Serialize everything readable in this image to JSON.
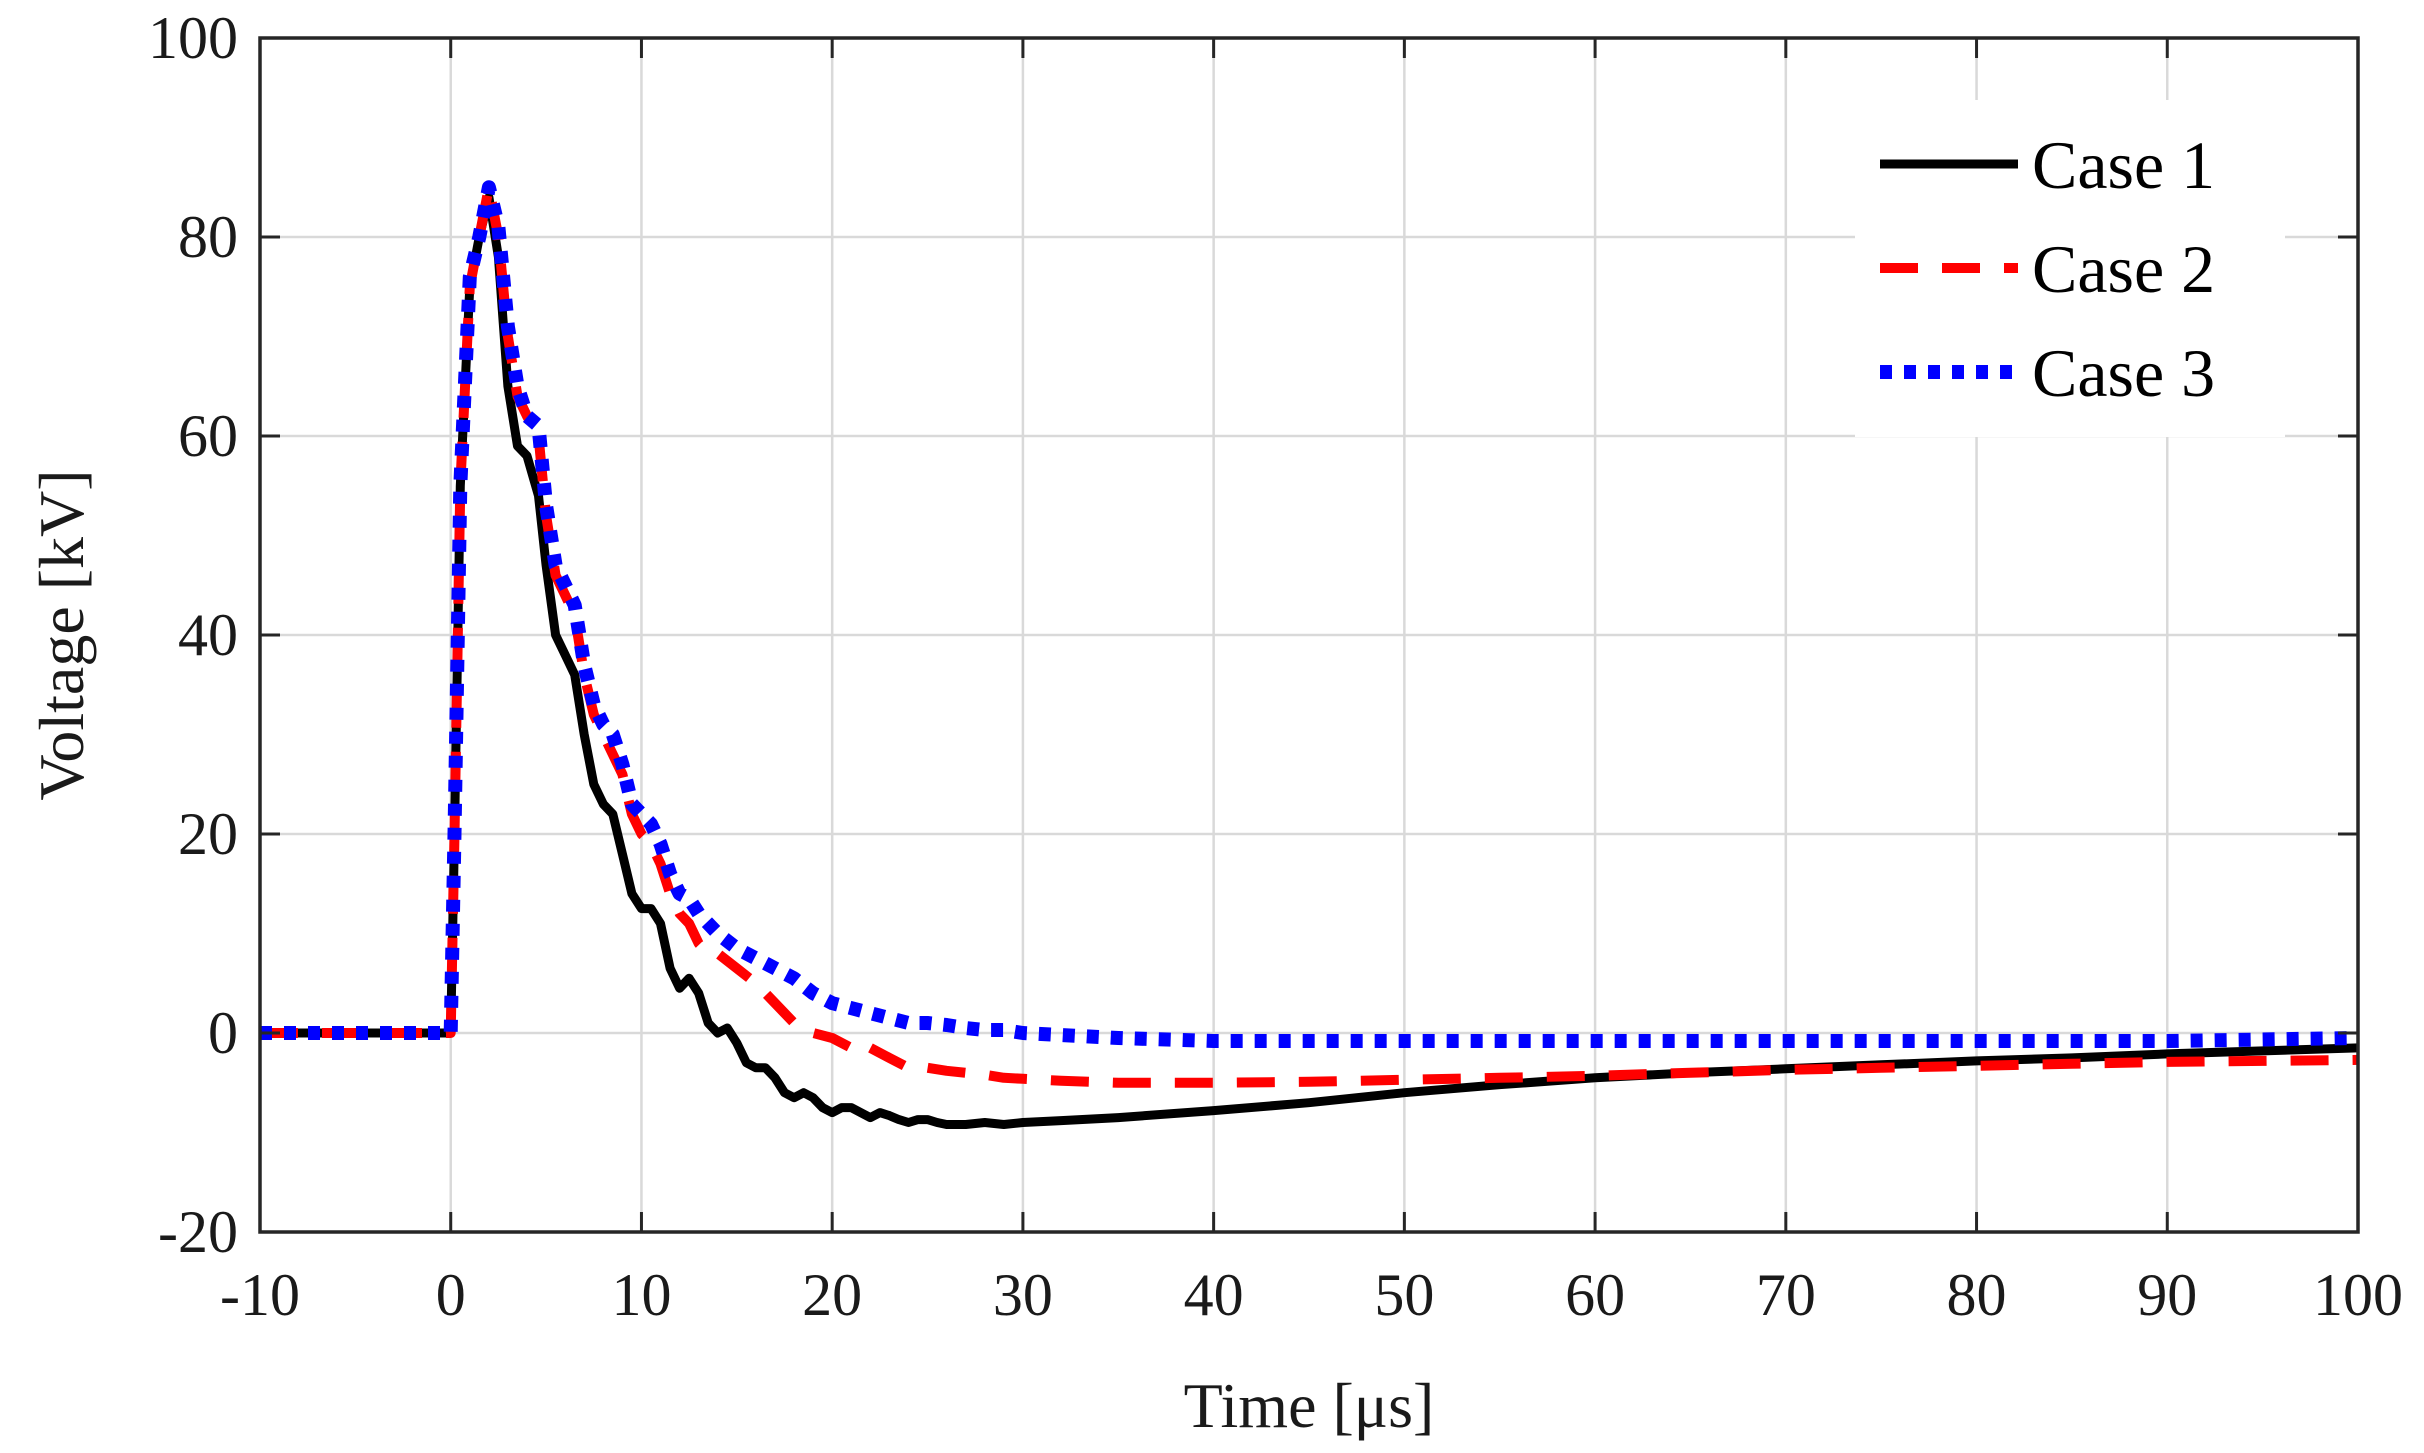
{
  "chart_data": {
    "type": "line",
    "title": "",
    "xlabel": "Time [μs]",
    "ylabel": "Voltage [kV]",
    "xlim": [
      -10,
      100
    ],
    "ylim": [
      -20,
      100
    ],
    "xticks": [
      -10,
      0,
      10,
      20,
      30,
      40,
      50,
      60,
      70,
      80,
      90,
      100
    ],
    "yticks": [
      -20,
      0,
      20,
      40,
      60,
      80,
      100
    ],
    "xtick_labels": [
      "-10",
      "0",
      "10",
      "20",
      "30",
      "40",
      "50",
      "60",
      "70",
      "80",
      "90",
      "100"
    ],
    "ytick_labels": [
      "-20",
      "0",
      "20",
      "40",
      "60",
      "80",
      "100"
    ],
    "grid": true,
    "legend_position": "top-right",
    "series": [
      {
        "name": "Case 1",
        "color": "#000000",
        "style": "solid",
        "x": [
          -10,
          0,
          0.2,
          0.5,
          1.0,
          1.5,
          2.0,
          2.5,
          3.0,
          3.5,
          4.0,
          4.6,
          5.0,
          5.5,
          6.0,
          6.5,
          7.0,
          7.5,
          8.0,
          8.5,
          9.0,
          9.5,
          10.0,
          10.5,
          11.0,
          11.5,
          12.0,
          12.5,
          13.0,
          13.5,
          14.0,
          14.5,
          15.0,
          15.5,
          16.0,
          16.5,
          17.0,
          17.5,
          18.0,
          18.5,
          19.0,
          19.5,
          20.0,
          20.5,
          21.0,
          21.5,
          22.0,
          22.5,
          23.0,
          23.5,
          24.0,
          24.5,
          25.0,
          25.5,
          26.0,
          27.0,
          28.0,
          29.0,
          30.0,
          32.0,
          35.0,
          40.0,
          45.0,
          50.0,
          55.0,
          60.0,
          65.0,
          70.0,
          75.0,
          80.0,
          85.0,
          90.0,
          95.0,
          100.0
        ],
        "y": [
          0,
          0,
          20,
          55,
          75,
          80,
          84,
          78,
          65,
          59,
          58,
          54,
          47,
          40,
          38,
          36,
          30,
          25,
          23,
          22,
          18,
          14,
          12.5,
          12.5,
          11,
          6.5,
          4.5,
          5.5,
          4,
          1,
          0,
          0.5,
          -1,
          -3,
          -3.5,
          -3.5,
          -4.5,
          -6,
          -6.5,
          -6,
          -6.5,
          -7.5,
          -8,
          -7.5,
          -7.5,
          -8,
          -8.5,
          -8,
          -8.3,
          -8.7,
          -9,
          -8.7,
          -8.7,
          -9,
          -9.2,
          -9.2,
          -9,
          -9.2,
          -9,
          -8.8,
          -8.5,
          -7.8,
          -7,
          -6,
          -5.2,
          -4.5,
          -4,
          -3.6,
          -3.2,
          -2.8,
          -2.5,
          -2.1,
          -1.8,
          -1.5
        ]
      },
      {
        "name": "Case 2",
        "color": "#ff0000",
        "style": "dashed",
        "x": [
          -10,
          0,
          0.2,
          0.5,
          1.0,
          1.5,
          2.0,
          2.5,
          3.0,
          3.5,
          4.0,
          4.6,
          5.0,
          5.5,
          6.0,
          6.5,
          7.0,
          7.5,
          8.0,
          8.5,
          9.0,
          9.5,
          10.0,
          10.5,
          11.0,
          11.5,
          12.0,
          12.5,
          13.0,
          13.5,
          14.0,
          15.0,
          16.0,
          17.0,
          18.0,
          19.0,
          20.0,
          21.0,
          21.5,
          22.0,
          23.0,
          24.0,
          25.0,
          26.0,
          27.0,
          28.0,
          29.0,
          30.0,
          32.0,
          35.0,
          40.0,
          45.0,
          50.0,
          55.0,
          60.0,
          65.0,
          70.0,
          75.0,
          80.0,
          85.0,
          90.0,
          95.0,
          100.0
        ],
        "y": [
          0,
          0,
          20,
          55,
          75,
          80,
          85,
          80,
          70,
          64,
          62,
          60,
          52,
          46,
          44,
          42,
          36,
          32,
          30,
          28,
          26,
          22,
          20,
          19,
          17,
          14,
          12,
          11,
          9,
          8,
          8,
          6.5,
          5,
          3,
          1,
          0,
          -0.5,
          -1.5,
          -1,
          -1.5,
          -2.5,
          -3.5,
          -3.5,
          -3.8,
          -4,
          -4.2,
          -4.5,
          -4.6,
          -4.8,
          -5,
          -5,
          -4.9,
          -4.7,
          -4.5,
          -4.3,
          -4,
          -3.7,
          -3.5,
          -3.3,
          -3.1,
          -2.9,
          -2.8,
          -2.7
        ]
      },
      {
        "name": "Case 3",
        "color": "#0000ff",
        "style": "dotted",
        "x": [
          -10,
          0,
          0.2,
          0.5,
          1.0,
          1.5,
          2.0,
          2.5,
          3.0,
          3.5,
          4.0,
          4.6,
          5.0,
          5.5,
          6.0,
          6.5,
          7.0,
          7.5,
          8.0,
          8.5,
          9.0,
          9.5,
          10.0,
          10.5,
          11.0,
          11.5,
          12.0,
          12.5,
          13.0,
          14.0,
          15.0,
          16.0,
          17.0,
          18.0,
          19.0,
          20.0,
          21.0,
          22.0,
          23.0,
          24.0,
          25.0,
          26.0,
          27.0,
          28.0,
          29.0,
          30.0,
          35.0,
          40.0,
          50.0,
          60.0,
          70.0,
          80.0,
          90.0,
          100.0
        ],
        "y": [
          0,
          0,
          20,
          55,
          76,
          80,
          85,
          81,
          71,
          65,
          62,
          61,
          53,
          47,
          45,
          43,
          37,
          33,
          31,
          30,
          27,
          23,
          22,
          21,
          19,
          16,
          14,
          13.5,
          12,
          10,
          8.5,
          7.5,
          6.5,
          5.5,
          4,
          3,
          2.5,
          2,
          1.5,
          1,
          1,
          0.8,
          0.5,
          0.3,
          0.3,
          0,
          -0.5,
          -0.8,
          -0.8,
          -0.8,
          -0.8,
          -0.8,
          -0.8,
          -0.5
        ]
      }
    ]
  }
}
